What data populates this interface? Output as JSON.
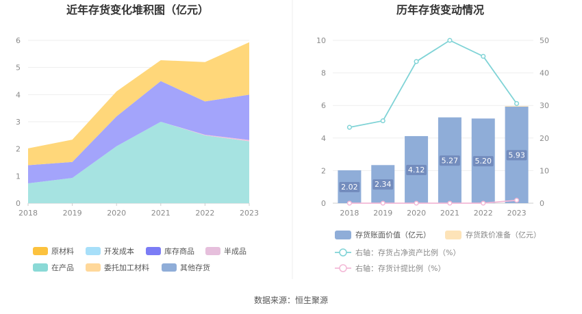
{
  "chart_data": [
    {
      "type": "area",
      "title": "近年存货变化堆积图（亿元）",
      "x": [
        "2018",
        "2019",
        "2020",
        "2021",
        "2022",
        "2023"
      ],
      "ylim": [
        0,
        6
      ],
      "yticks": [
        "0",
        "1",
        "2",
        "3",
        "4",
        "5",
        "6"
      ],
      "grid": true,
      "legend_position": "bottom",
      "series": [
        {
          "name": "在产品",
          "color": "#a6e3e1",
          "values": [
            0.73,
            0.93,
            2.1,
            3.0,
            2.5,
            2.28
          ]
        },
        {
          "name": "半成品",
          "color": "#f2c1dc",
          "values": [
            0.0,
            0.0,
            0.0,
            0.0,
            0.02,
            0.05
          ]
        },
        {
          "name": "库存商品",
          "color": "#a3a4fb",
          "values": [
            0.67,
            0.59,
            1.1,
            1.5,
            1.23,
            1.67
          ]
        },
        {
          "name": "原材料",
          "color": "#ffd77a",
          "values": [
            0.62,
            0.82,
            0.92,
            0.77,
            1.45,
            1.93
          ]
        },
        {
          "name": "开发成本",
          "color": "#a7dff9",
          "values": [
            0,
            0,
            0,
            0,
            0,
            0
          ]
        },
        {
          "name": "委托加工材料",
          "color": "#ffdca0",
          "values": [
            0,
            0,
            0,
            0,
            0,
            0
          ]
        },
        {
          "name": "其他存货",
          "color": "#8fadd8",
          "values": [
            0,
            0,
            0,
            0,
            0,
            0
          ]
        }
      ],
      "legend": [
        {
          "name": "原材料",
          "color": "#fcc23e"
        },
        {
          "name": "开发成本",
          "color": "#a7dff9"
        },
        {
          "name": "库存商品",
          "color": "#7b7cf5"
        },
        {
          "name": "半成品",
          "color": "#e6bfdc"
        },
        {
          "name": "在产品",
          "color": "#8ad9d6"
        },
        {
          "name": "委托加工材料",
          "color": "#ffd89a"
        },
        {
          "name": "其他存货",
          "color": "#8fadd8"
        }
      ]
    },
    {
      "type": "bar",
      "title": "历年存货变动情况",
      "categories": [
        "2018",
        "2019",
        "2020",
        "2021",
        "2022",
        "2023"
      ],
      "ylim_left": [
        0,
        10
      ],
      "yticks_left": [
        "0",
        "2",
        "4",
        "6",
        "8",
        "10"
      ],
      "ylim_right": [
        0,
        50
      ],
      "yticks_right": [
        "0",
        "10",
        "20",
        "30",
        "40",
        "50"
      ],
      "grid": true,
      "legend_position": "bottom",
      "series": [
        {
          "name": "存货账面价值（亿元）",
          "type": "bar",
          "axis": "left",
          "color": "#8fadd8",
          "values": [
            2.02,
            2.34,
            4.12,
            5.27,
            5.2,
            5.93
          ],
          "labels": [
            "2.02",
            "2.34",
            "4.12",
            "5.27",
            "5.20",
            "5.93"
          ]
        },
        {
          "name": "存货跌价准备（亿元）",
          "type": "bar",
          "axis": "left",
          "color": "#fde3b8",
          "values": [
            0,
            0,
            0,
            0,
            0,
            0.04
          ]
        },
        {
          "name": "右轴：存货占净资产比例（%）",
          "type": "line",
          "axis": "right",
          "color": "#7fd3d6",
          "values": [
            23.3,
            25.3,
            43.5,
            50.0,
            45.1,
            30.6
          ]
        },
        {
          "name": "右轴：存货计提比例（%）",
          "type": "line",
          "axis": "right",
          "color": "#f3b7d6",
          "values": [
            0,
            0,
            0,
            0,
            0,
            0.9
          ]
        }
      ]
    }
  ],
  "footer": {
    "source": "数据来源：恒生聚源"
  }
}
